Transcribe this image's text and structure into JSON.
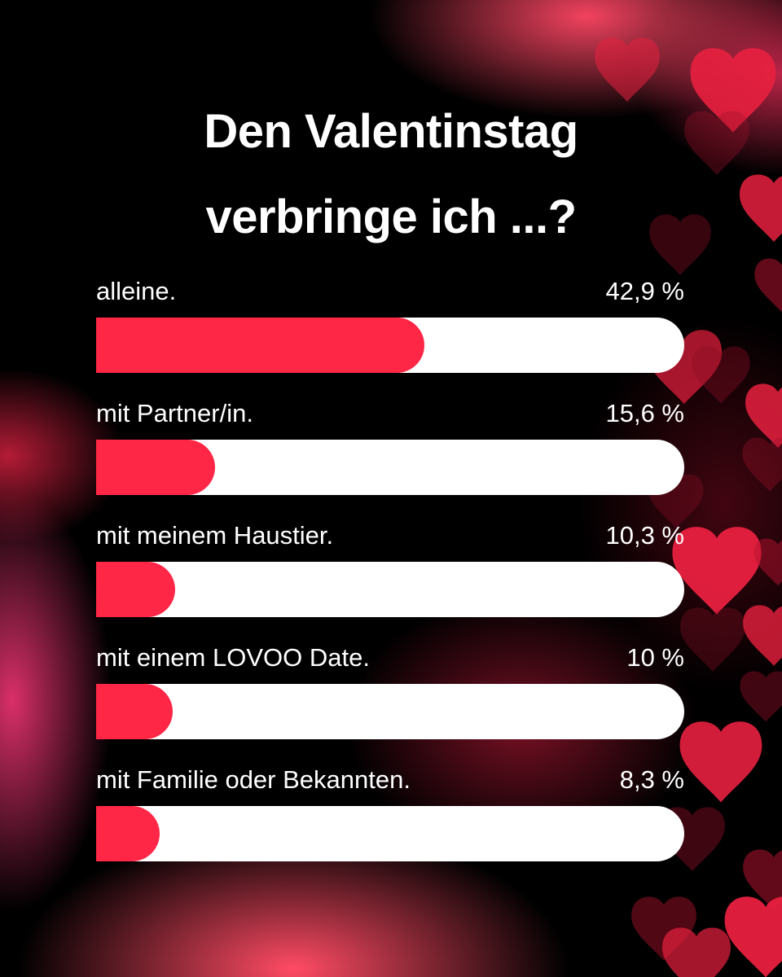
{
  "title": {
    "line1": "Den Valentinstag",
    "line2": "verbringe ich ...?"
  },
  "colors": {
    "bar_fill": "#ff2646",
    "bar_track": "#ffffff",
    "background": "#000000",
    "heart": "#e8203f"
  },
  "decoration": "heart-icons",
  "chart_data": {
    "type": "bar",
    "orientation": "horizontal",
    "categories": [
      "alleine.",
      "mit Partner/in.",
      "mit meinem Haustier.",
      "mit einem LOVOO Date.",
      "mit Familie oder Bekannten."
    ],
    "values": [
      42.9,
      15.6,
      10.3,
      10,
      8.3
    ],
    "value_labels": [
      "42,9 %",
      "15,6 %",
      "10,3 %",
      "10 %",
      "8,3 %"
    ],
    "unit": "%",
    "xlim": [
      0,
      100
    ],
    "grid": false,
    "legend": "none"
  }
}
